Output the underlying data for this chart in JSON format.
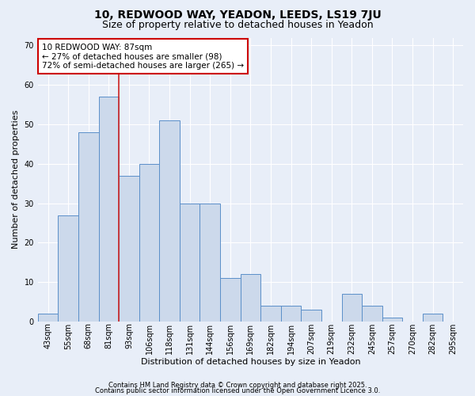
{
  "title1": "10, REDWOOD WAY, YEADON, LEEDS, LS19 7JU",
  "title2": "Size of property relative to detached houses in Yeadon",
  "xlabel": "Distribution of detached houses by size in Yeadon",
  "ylabel": "Number of detached properties",
  "bins": [
    "43sqm",
    "55sqm",
    "68sqm",
    "81sqm",
    "93sqm",
    "106sqm",
    "118sqm",
    "131sqm",
    "144sqm",
    "156sqm",
    "169sqm",
    "182sqm",
    "194sqm",
    "207sqm",
    "219sqm",
    "232sqm",
    "245sqm",
    "257sqm",
    "270sqm",
    "282sqm",
    "295sqm"
  ],
  "values": [
    2,
    27,
    48,
    57,
    37,
    40,
    51,
    30,
    30,
    11,
    12,
    4,
    4,
    3,
    0,
    7,
    4,
    1,
    0,
    2,
    0
  ],
  "bar_color": "#ccd9eb",
  "bar_edge_color": "#5b8fc9",
  "red_line_x": 3.5,
  "annotation_text": "10 REDWOOD WAY: 87sqm\n← 27% of detached houses are smaller (98)\n72% of semi-detached houses are larger (265) →",
  "annotation_box_color": "#ffffff",
  "annotation_box_edge": "#cc0000",
  "footer1": "Contains HM Land Registry data © Crown copyright and database right 2025.",
  "footer2": "Contains public sector information licensed under the Open Government Licence 3.0.",
  "ylim_max": 72,
  "yticks": [
    0,
    10,
    20,
    30,
    40,
    50,
    60,
    70
  ],
  "background_color": "#e8eef8",
  "grid_color": "#ffffff",
  "title1_fontsize": 10,
  "title2_fontsize": 9,
  "tick_fontsize": 7,
  "ylabel_fontsize": 8,
  "xlabel_fontsize": 8,
  "footer_fontsize": 6,
  "ann_fontsize": 7.5
}
